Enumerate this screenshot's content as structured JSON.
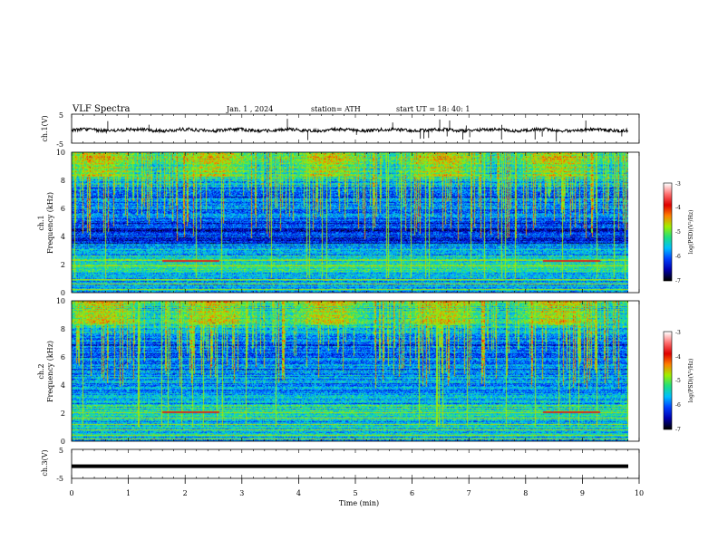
{
  "header": {
    "title": "VLF  Spectra",
    "date": "Jan.  1  , 2024",
    "station": "station= ATH",
    "start": "start  UT  =    18: 40: 1"
  },
  "chart_data": [
    {
      "type": "line",
      "name": "ch1-waveform",
      "ylabel": "ch.1(V)",
      "ylim": [
        -5,
        5
      ],
      "yticks": [
        "5",
        "-5"
      ],
      "xlim": [
        0,
        10
      ],
      "level": -0.5,
      "color": "#000000"
    },
    {
      "type": "heatmap",
      "name": "ch1-spectrogram",
      "ylabel": "ch.1",
      "ylabel2": "Frequency  (kHz)",
      "ylim": [
        0,
        10
      ],
      "yticks": [
        "0",
        "2",
        "4",
        "6",
        "8",
        "10"
      ],
      "xlim": [
        0,
        9.8
      ],
      "colorbar": {
        "label": "log(PSD)(V²/Hz)",
        "range": [
          -7,
          -3
        ],
        "ticks": [
          "-3",
          "-4",
          "-5",
          "-6",
          "-7"
        ]
      },
      "features": [
        {
          "type": "band",
          "freq_khz": 2.2,
          "t_start": 1.6,
          "t_end": 2.6,
          "color": "#d03020"
        },
        {
          "type": "band",
          "freq_khz": 2.2,
          "t_start": 8.3,
          "t_end": 9.3,
          "color": "#d03020"
        }
      ]
    },
    {
      "type": "heatmap",
      "name": "ch2-spectrogram",
      "ylabel": "ch.2",
      "ylabel2": "Frequency  (kHz)",
      "ylim": [
        0,
        10
      ],
      "yticks": [
        "0",
        "2",
        "4",
        "6",
        "8",
        "10"
      ],
      "xlim": [
        0,
        9.8
      ],
      "colorbar": {
        "label": "log(PSD)(V²/Hz)",
        "range": [
          -7,
          -3
        ],
        "ticks": [
          "-3",
          "-4",
          "-5",
          "-6",
          "-7"
        ]
      },
      "features": [
        {
          "type": "band",
          "freq_khz": 2.0,
          "t_start": 1.6,
          "t_end": 2.6,
          "color": "#d03020"
        },
        {
          "type": "band",
          "freq_khz": 2.0,
          "t_start": 8.3,
          "t_end": 9.3,
          "color": "#d03020"
        }
      ]
    },
    {
      "type": "line",
      "name": "ch3-waveform",
      "ylabel": "ch.3(V)",
      "ylim": [
        -5,
        5
      ],
      "yticks": [
        "5",
        "-5"
      ],
      "xlim": [
        0,
        10
      ],
      "level": -0.8,
      "color": "#000000"
    }
  ],
  "xaxis": {
    "label": "Time  (min)",
    "range": [
      0,
      10
    ],
    "ticks": [
      "0",
      "1",
      "2",
      "3",
      "4",
      "5",
      "6",
      "7",
      "8",
      "9",
      "10"
    ]
  },
  "colors": {
    "cmap": [
      "#000000",
      "#0000b0",
      "#0040ff",
      "#00c0ff",
      "#20e080",
      "#a0f000",
      "#ff8000",
      "#e00000",
      "#ff7070",
      "#ffffff"
    ]
  }
}
